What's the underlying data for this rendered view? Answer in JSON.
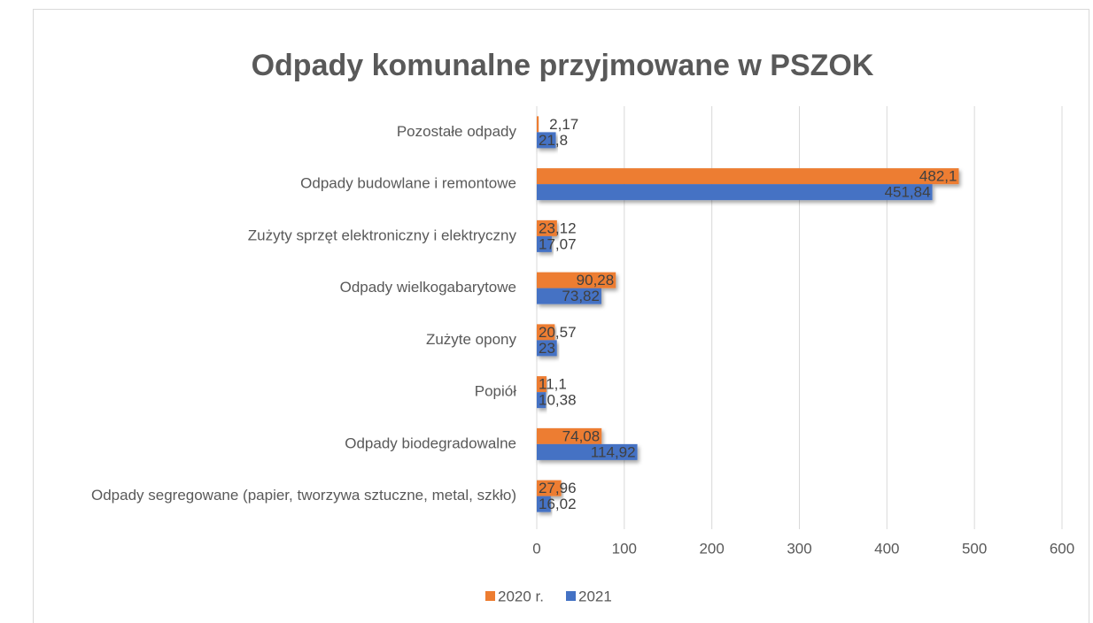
{
  "chart_data": {
    "type": "barh",
    "title": "Odpady komunalne przyjmowane w  PSZOK",
    "categories": [
      "Pozostałe odpady",
      "Odpady budowlane i remontowe",
      "Zużyty sprzęt elektroniczny i elektryczny",
      "Odpady wielkogabarytowe",
      "Zużyte opony",
      "Popiół",
      "Odpady biodegradowalne",
      "Odpady segregowane (papier, tworzywa sztuczne, metal, szkło)"
    ],
    "series": [
      {
        "name": "2020 r.",
        "color": "#ed7d31",
        "values": [
          2.17,
          482.1,
          23.12,
          90.28,
          20.57,
          11.1,
          74.08,
          27.96
        ],
        "value_labels": [
          "2,17",
          "482,1",
          "23,12",
          "90,28",
          "20,57",
          "11,1",
          "74,08",
          "27,96"
        ]
      },
      {
        "name": "2021",
        "color": "#4472c4",
        "values": [
          21.8,
          451.84,
          17.07,
          73.82,
          23,
          10.38,
          114.92,
          16.02
        ],
        "value_labels": [
          "21,8",
          "451,84",
          "17,07",
          "73,82",
          "23",
          "10,38",
          "114,92",
          "16,02"
        ]
      }
    ],
    "xlim": [
      0,
      600
    ],
    "xticks": [
      0,
      100,
      200,
      300,
      400,
      500,
      600
    ],
    "grid": true,
    "legend": "bottom"
  }
}
